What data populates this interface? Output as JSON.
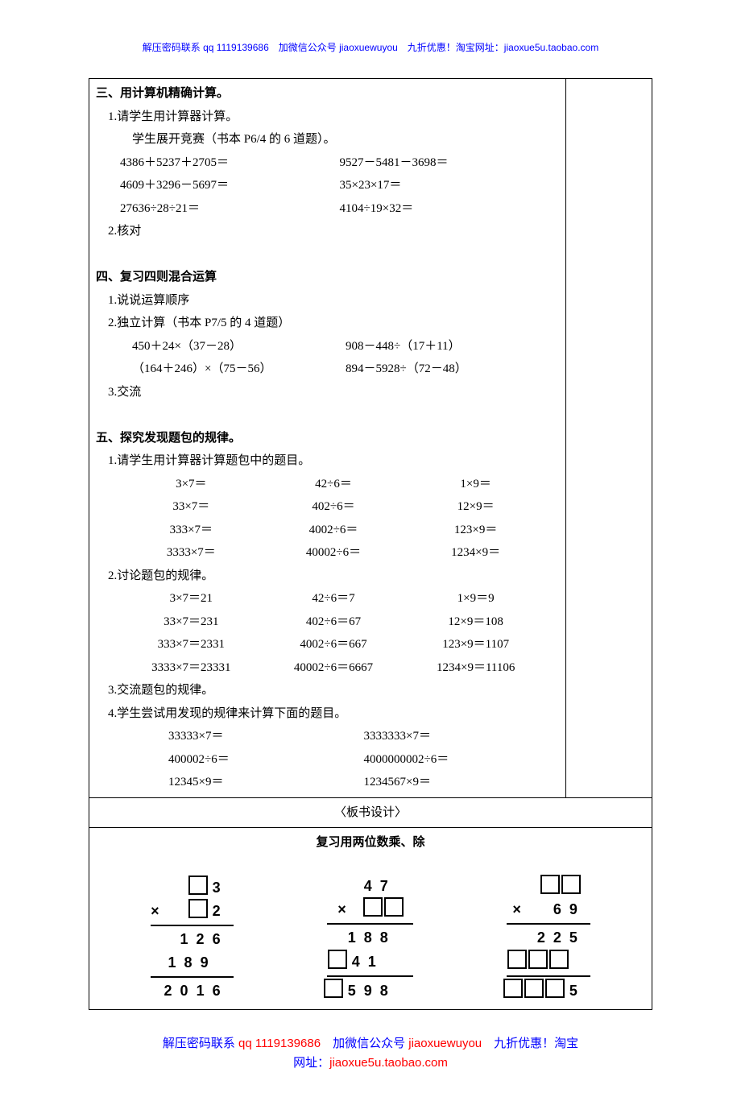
{
  "header": "解压密码联系 qq 1119139686　加微信公众号 jiaoxuewuyou　九折优惠！淘宝网址：jiaoxue5u.taobao.com",
  "sec3": {
    "title": "三、用计算机精确计算。",
    "p1": "1.请学生用计算器计算。",
    "p1a": "学生展开竞赛（书本 P6/4 的 6 道题）。",
    "p1b_l": "4386＋5237＋2705＝",
    "p1b_r": "9527－5481－3698＝",
    "p1c_l": "4609＋3296－5697＝",
    "p1c_r": "35×23×17＝",
    "p1d_l": "27636÷28÷21＝",
    "p1d_r": "4104÷19×32＝",
    "p2": "2.核对"
  },
  "sec4": {
    "title": "四、复习四则混合运算",
    "p1": "1.说说运算顺序",
    "p2": "2.独立计算（书本 P7/5 的 4 道题）",
    "p2a_l": "450＋24×（37－28）",
    "p2a_r": "908－448÷（17＋11）",
    "p2b_l": "（164＋246）×（75－56）",
    "p2b_r": "894－5928÷（72－48）",
    "p3": "3.交流"
  },
  "sec5": {
    "title": "五、探究发现题包的规律。",
    "p1": "1.请学生用计算器计算题包中的题目。",
    "g1": [
      "3×7＝",
      "42÷6＝",
      "1×9＝",
      "33×7＝",
      "402÷6＝",
      "12×9＝",
      "333×7＝",
      "4002÷6＝",
      "123×9＝",
      "3333×7＝",
      "40002÷6＝",
      "1234×9＝"
    ],
    "p2": "2.讨论题包的规律。",
    "g2": [
      "3×7＝21",
      "42÷6＝7",
      "1×9＝9",
      "33×7＝231",
      "402÷6＝67",
      "12×9＝108",
      "333×7＝2331",
      "4002÷6＝667",
      "123×9＝1107",
      "3333×7＝23331",
      "40002÷6＝6667",
      "1234×9＝11106"
    ],
    "p3": "3.交流题包的规律。",
    "p4": "4.学生尝试用发现的规律来计算下面的题目。",
    "g3": [
      "33333×7＝",
      "3333333×7＝",
      "400002÷6＝",
      "4000000002÷6＝",
      "12345×9＝",
      "1234567×9＝"
    ]
  },
  "board_label": "〈板书设计〉",
  "board_title": "复习用两位数乘、除",
  "footer": {
    "a": "解压密码联系 ",
    "b": "qq 1119139686",
    "c": "　加微信公众号 ",
    "d": "jiaoxuewuyou",
    "e": "　九折优惠！淘宝",
    "f": "网址：",
    "g": "jiaoxue5u.taobao.com"
  }
}
